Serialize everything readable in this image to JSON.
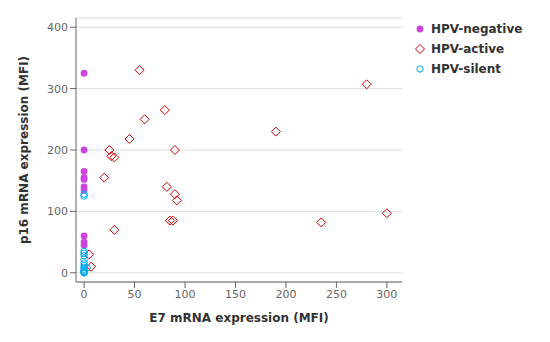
{
  "chart_data": {
    "type": "scatter",
    "xlabel": "E7 mRNA expression (MFI)",
    "ylabel": "p16 mRNA expression (MFI)",
    "xlim": [
      -8,
      315
    ],
    "ylim": [
      -15,
      415
    ],
    "xticks": [
      0,
      50,
      100,
      150,
      200,
      250,
      300
    ],
    "yticks": [
      0,
      100,
      200,
      300,
      400
    ],
    "grid": "y",
    "legend": "right",
    "series": [
      {
        "name": "HPV-negative",
        "color": "#cc44dd",
        "marker": "circle",
        "x": [
          0,
          0,
          0,
          0,
          0,
          0,
          0,
          0,
          0,
          0
        ],
        "y": [
          325,
          200,
          165,
          155,
          152,
          140,
          135,
          60,
          50,
          45
        ]
      },
      {
        "name": "HPV-active",
        "color": "#cc0000",
        "marker": "open_diamond",
        "x": [
          5,
          7,
          20,
          25,
          27,
          30,
          30,
          45,
          55,
          60,
          80,
          82,
          85,
          88,
          90,
          90,
          92,
          190,
          235,
          280,
          300
        ],
        "y": [
          30,
          10,
          155,
          200,
          190,
          188,
          70,
          218,
          330,
          250,
          265,
          140,
          85,
          85,
          200,
          128,
          118,
          230,
          82,
          307,
          97
        ]
      },
      {
        "name": "HPV-silent",
        "color": "#00aaee",
        "marker": "open_circle",
        "x": [
          0,
          0,
          0,
          0,
          0,
          0,
          0,
          0,
          0,
          0,
          0,
          0,
          0,
          3,
          0,
          0
        ],
        "y": [
          128,
          125,
          35,
          32,
          28,
          22,
          16,
          12,
          9,
          6,
          4,
          2,
          1,
          8,
          0,
          0
        ]
      }
    ]
  }
}
